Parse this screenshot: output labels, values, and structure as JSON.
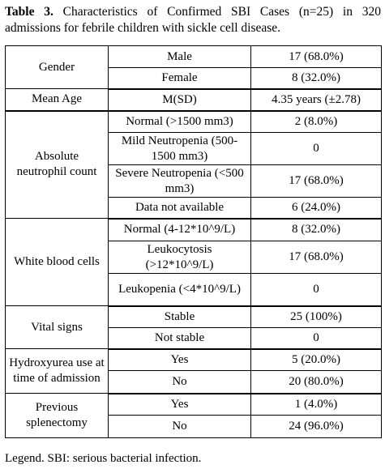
{
  "caption": {
    "label": "Table 3.",
    "text": " Characteristics of Confirmed SBI Cases (n=25) in 320 admissions for febrile children with sickle cell disease."
  },
  "table": {
    "gender": {
      "label": "Gender",
      "rows": [
        {
          "category": "Male",
          "value": "17 (68.0%)"
        },
        {
          "category": "Female",
          "value": "8 (32.0%)"
        }
      ]
    },
    "mean_age": {
      "label": "Mean Age",
      "category": "M(SD)",
      "value": "4.35 years (±2.78)"
    },
    "anc": {
      "label": "Absolute neutrophil count",
      "rows": [
        {
          "category": "Normal (>1500 mm3)",
          "value": "2 (8.0%)"
        },
        {
          "category": "Mild Neutropenia (500-1500 mm3)",
          "value": "0"
        },
        {
          "category": "Severe Neutropenia (<500 mm3)",
          "value": "17 (68.0%)"
        },
        {
          "category": "Data not available",
          "value": "6 (24.0%)"
        }
      ]
    },
    "wbc": {
      "label": "White blood cells",
      "rows": [
        {
          "category": "Normal (4-12*10^9/L)",
          "value": "8 (32.0%)"
        },
        {
          "category": "Leukocytosis (>12*10^9/L)",
          "value": "17 (68.0%)"
        },
        {
          "category": "Leukopenia (<4*10^9/L)",
          "value": "0"
        }
      ]
    },
    "vital": {
      "label": "Vital signs",
      "rows": [
        {
          "category": "Stable",
          "value": "25 (100%)"
        },
        {
          "category": "Not stable",
          "value": "0"
        }
      ]
    },
    "hydroxyurea": {
      "label": "Hydroxyurea use at time of admission",
      "rows": [
        {
          "category": "Yes",
          "value": "5 (20.0%)"
        },
        {
          "category": "No",
          "value": "20 (80.0%)"
        }
      ]
    },
    "splenectomy": {
      "label": "Previous splenectomy",
      "rows": [
        {
          "category": "Yes",
          "value": "1 (4.0%)"
        },
        {
          "category": "No",
          "value": "24 (96.0%)"
        }
      ]
    }
  },
  "legend": "Legend. SBI: serious bacterial infection."
}
